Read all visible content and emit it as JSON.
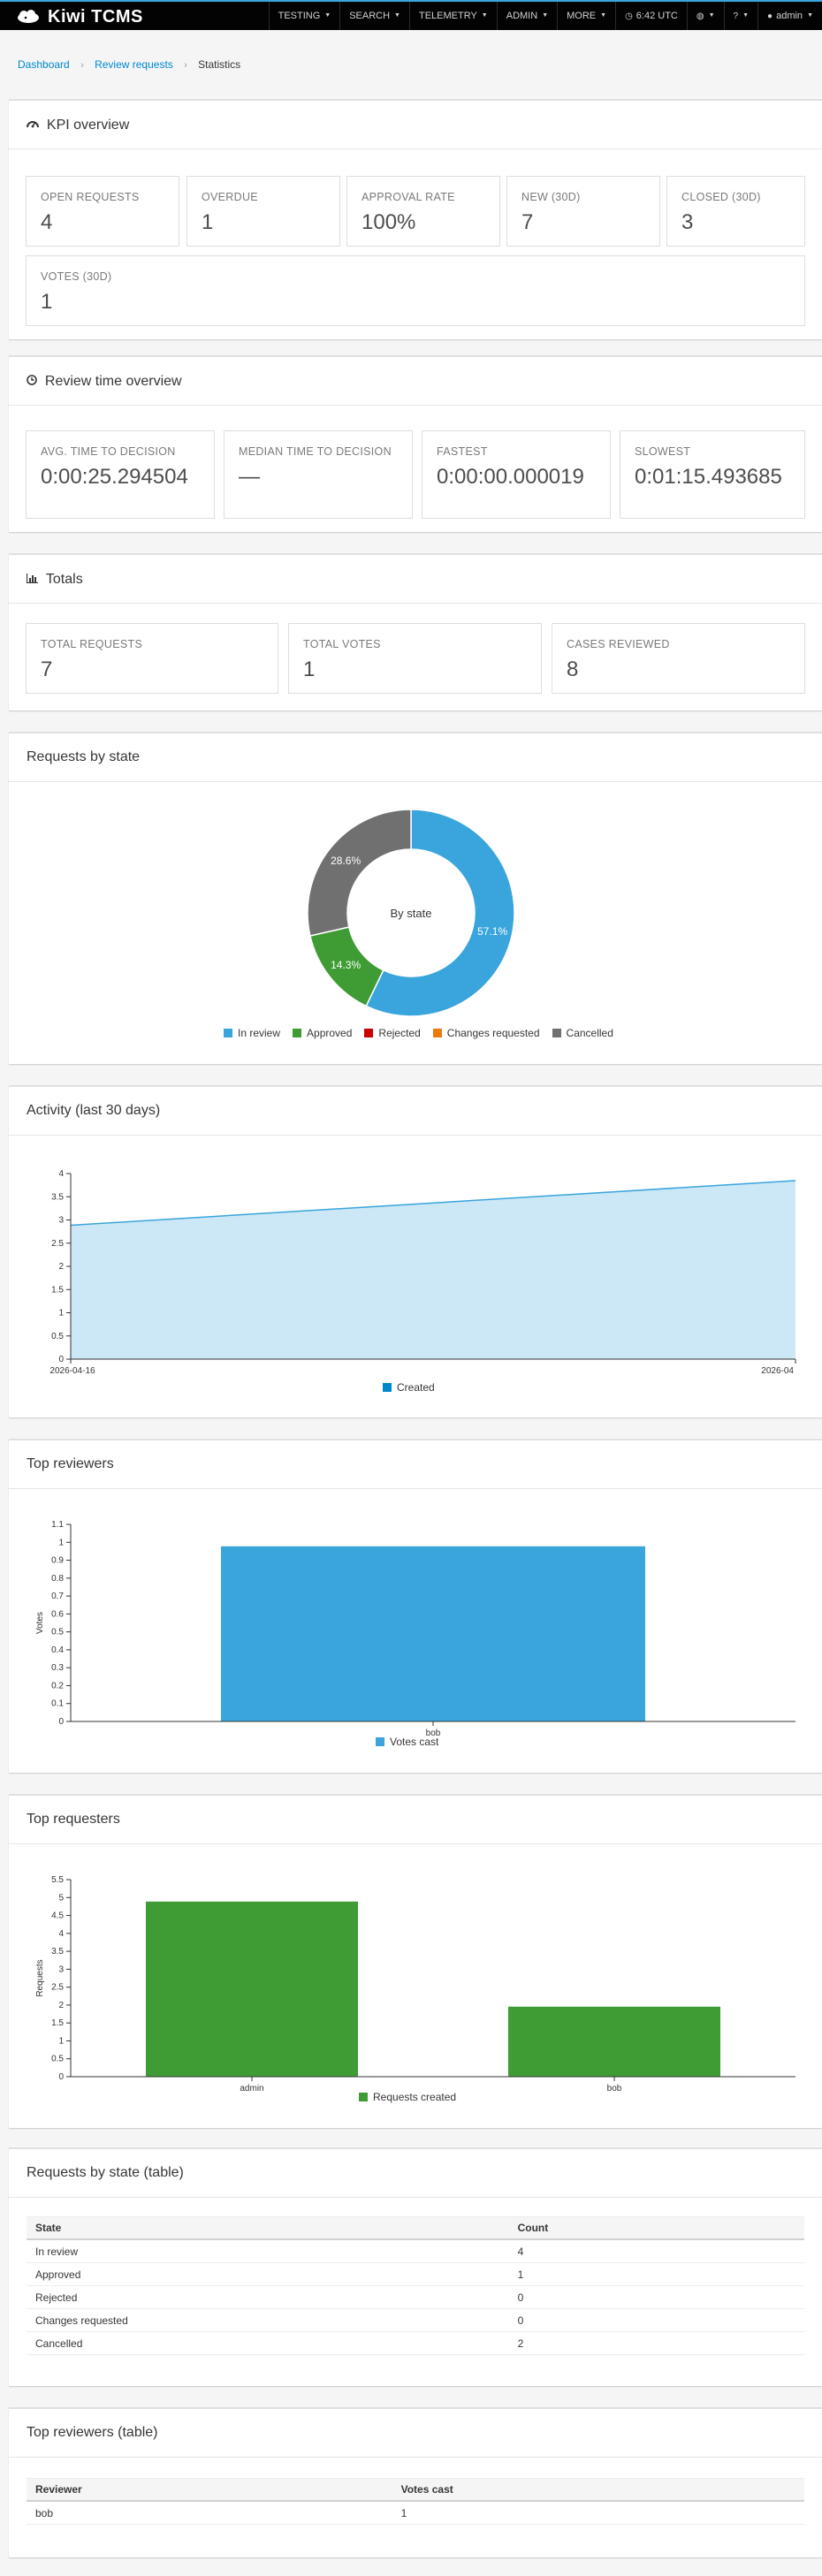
{
  "nav": {
    "brand": "Kiwi TCMS",
    "items": [
      {
        "label": "TESTING",
        "caret": true
      },
      {
        "label": "SEARCH",
        "caret": true
      },
      {
        "label": "TELEMETRY",
        "caret": true
      },
      {
        "label": "ADMIN",
        "caret": true
      },
      {
        "label": "MORE",
        "caret": true
      },
      {
        "label": "6:42 UTC",
        "icon": "clock-icon"
      },
      {
        "label": "",
        "icon": "globe-icon",
        "caret": true
      },
      {
        "label": "",
        "icon": "help-icon",
        "caret": true
      },
      {
        "label": "admin",
        "icon": "user-icon",
        "caret": true
      }
    ]
  },
  "breadcrumb": {
    "home": "Dashboard",
    "section": "Review requests",
    "current": "Statistics"
  },
  "kpi": {
    "title": "KPI overview",
    "items": [
      {
        "label": "OPEN REQUESTS",
        "value": "4"
      },
      {
        "label": "OVERDUE",
        "value": "1"
      },
      {
        "label": "APPROVAL RATE",
        "value": "100%"
      },
      {
        "label": "NEW (30D)",
        "value": "7"
      },
      {
        "label": "CLOSED (30D)",
        "value": "3"
      },
      {
        "label": "VOTES (30D)",
        "value": "1"
      }
    ]
  },
  "review_time": {
    "title": "Review time overview",
    "items": [
      {
        "label": "AVG. TIME TO DECISION",
        "value": "0:00:25.294504"
      },
      {
        "label": "MEDIAN TIME TO DECISION",
        "value": "—"
      },
      {
        "label": "FASTEST",
        "value": "0:00:00.000019"
      },
      {
        "label": "SLOWEST",
        "value": "0:01:15.493685"
      }
    ]
  },
  "totals": {
    "title": "Totals",
    "items": [
      {
        "label": "TOTAL REQUESTS",
        "value": "7"
      },
      {
        "label": "TOTAL VOTES",
        "value": "1"
      },
      {
        "label": "CASES REVIEWED",
        "value": "8"
      }
    ]
  },
  "by_state": {
    "title": "Requests by state",
    "center_label": "By state"
  },
  "activity": {
    "title": "Activity (last 30 days)"
  },
  "reviewers": {
    "title": "Top reviewers"
  },
  "requesters": {
    "title": "Top requesters"
  },
  "state_table": {
    "title": "Requests by state (table)",
    "headers": [
      "State",
      "Count"
    ],
    "rows": [
      [
        "In review",
        "4"
      ],
      [
        "Approved",
        "1"
      ],
      [
        "Rejected",
        "0"
      ],
      [
        "Changes requested",
        "0"
      ],
      [
        "Cancelled",
        "2"
      ]
    ]
  },
  "reviewer_table": {
    "title": "Top reviewers (table)",
    "headers": [
      "Reviewer",
      "Votes cast"
    ],
    "rows": [
      [
        "bob",
        "1"
      ]
    ]
  },
  "colors": {
    "blue": "#39a5dc",
    "green": "#3f9c35",
    "red": "#cc0000",
    "orange": "#ec7a08",
    "gray": "#707070",
    "area": "#cce7f6",
    "bar_blue": "#39a5dc",
    "bar_green": "#3f9c35"
  },
  "chart_data": [
    {
      "type": "pie",
      "title": "By state",
      "categories": [
        "In review",
        "Approved",
        "Rejected",
        "Changes requested",
        "Cancelled"
      ],
      "values": [
        4,
        1,
        0,
        0,
        2
      ],
      "labels": [
        "57.1%",
        "14.3%",
        "",
        "",
        "28.6%"
      ],
      "colors": [
        "#39a5dc",
        "#3f9c35",
        "#cc0000",
        "#ec7a08",
        "#707070"
      ]
    },
    {
      "type": "area",
      "x": [
        "2026-04-16",
        "2026-04"
      ],
      "series": [
        {
          "name": "Created",
          "values": [
            3,
            4
          ]
        }
      ],
      "yticks": [
        "0",
        "0.5",
        "1",
        "1.5",
        "2",
        "2.5",
        "3",
        "3.5",
        "4"
      ],
      "ylim": [
        0,
        4
      ]
    },
    {
      "type": "bar",
      "categories": [
        "bob"
      ],
      "series": [
        {
          "name": "Votes cast",
          "values": [
            1
          ]
        }
      ],
      "ylabel": "Votes",
      "yticks": [
        "0",
        "0.1",
        "0.2",
        "0.3",
        "0.4",
        "0.5",
        "0.6",
        "0.7",
        "0.8",
        "0.9",
        "1",
        "1.1"
      ],
      "ylim": [
        0,
        1.1
      ]
    },
    {
      "type": "bar",
      "categories": [
        "admin",
        "bob"
      ],
      "series": [
        {
          "name": "Requests created",
          "values": [
            5,
            2
          ]
        }
      ],
      "ylabel": "Requests",
      "yticks": [
        "0",
        "0.5",
        "1",
        "1.5",
        "2",
        "2.5",
        "3",
        "3.5",
        "4",
        "4.5",
        "5",
        "5.5"
      ],
      "ylim": [
        0,
        5.5
      ]
    }
  ]
}
